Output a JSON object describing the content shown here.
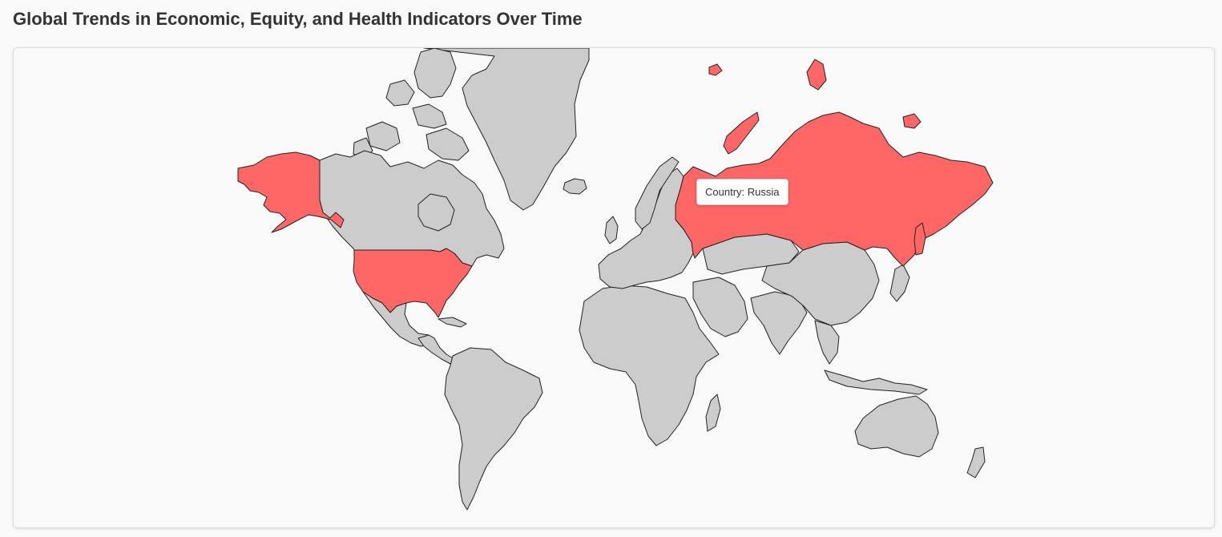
{
  "page": {
    "title": "Global Trends in Economic, Equity, and Health Indicators Over Time"
  },
  "map": {
    "projection": "mercator",
    "default_fill": "#cccccc",
    "highlight_fill": "#ff6666",
    "border_color": "#222222",
    "highlighted_countries": [
      "United States",
      "Russia"
    ],
    "countries": [
      {
        "name": "Canada",
        "highlighted": false
      },
      {
        "name": "United States",
        "highlighted": true
      },
      {
        "name": "Mexico",
        "highlighted": false
      },
      {
        "name": "Greenland",
        "highlighted": false
      },
      {
        "name": "Russia",
        "highlighted": true
      },
      {
        "name": "Brazil",
        "highlighted": false
      },
      {
        "name": "China",
        "highlighted": false
      },
      {
        "name": "Australia",
        "highlighted": false
      }
    ]
  },
  "tooltip": {
    "label": "Country:",
    "country": "Russia"
  }
}
